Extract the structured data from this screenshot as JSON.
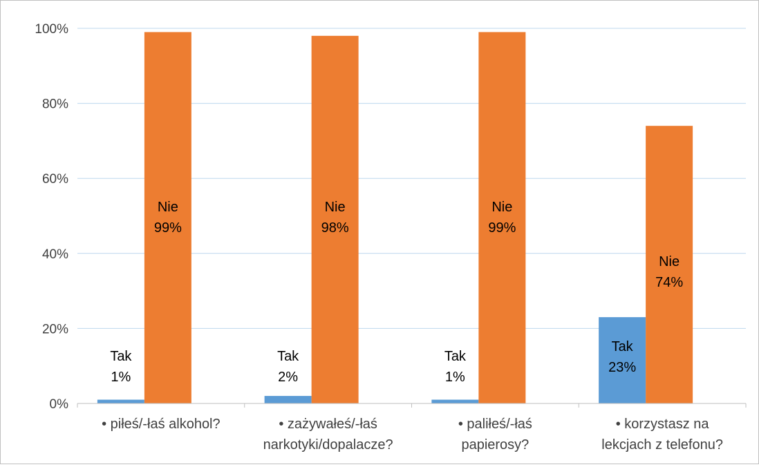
{
  "chart_data": {
    "type": "bar",
    "categories": [
      [
        "• piłeś/-łaś alkohol?"
      ],
      [
        "• zażywałeś/-łaś",
        "narkotyki/dopalacze?"
      ],
      [
        "• paliłeś/-łaś",
        "papierosy?"
      ],
      [
        "• korzystasz na",
        "lekcjach z telefonu?"
      ]
    ],
    "series": [
      {
        "name": "Tak",
        "values": [
          1,
          2,
          1,
          23
        ],
        "labels": [
          "1%",
          "2%",
          "1%",
          "23%"
        ],
        "color": "#5b9bd5"
      },
      {
        "name": "Nie",
        "values": [
          99,
          98,
          99,
          74
        ],
        "labels": [
          "99%",
          "98%",
          "99%",
          "74%"
        ],
        "color": "#ed7d31"
      }
    ],
    "ylim": [
      0,
      100
    ],
    "yticks": [
      0,
      20,
      40,
      60,
      80,
      100
    ],
    "ytick_labels": [
      "0%",
      "20%",
      "40%",
      "60%",
      "80%",
      "100%"
    ],
    "grid": true,
    "gridline_color": "#bdd7ee",
    "axis_color": "#bfbfbf"
  }
}
